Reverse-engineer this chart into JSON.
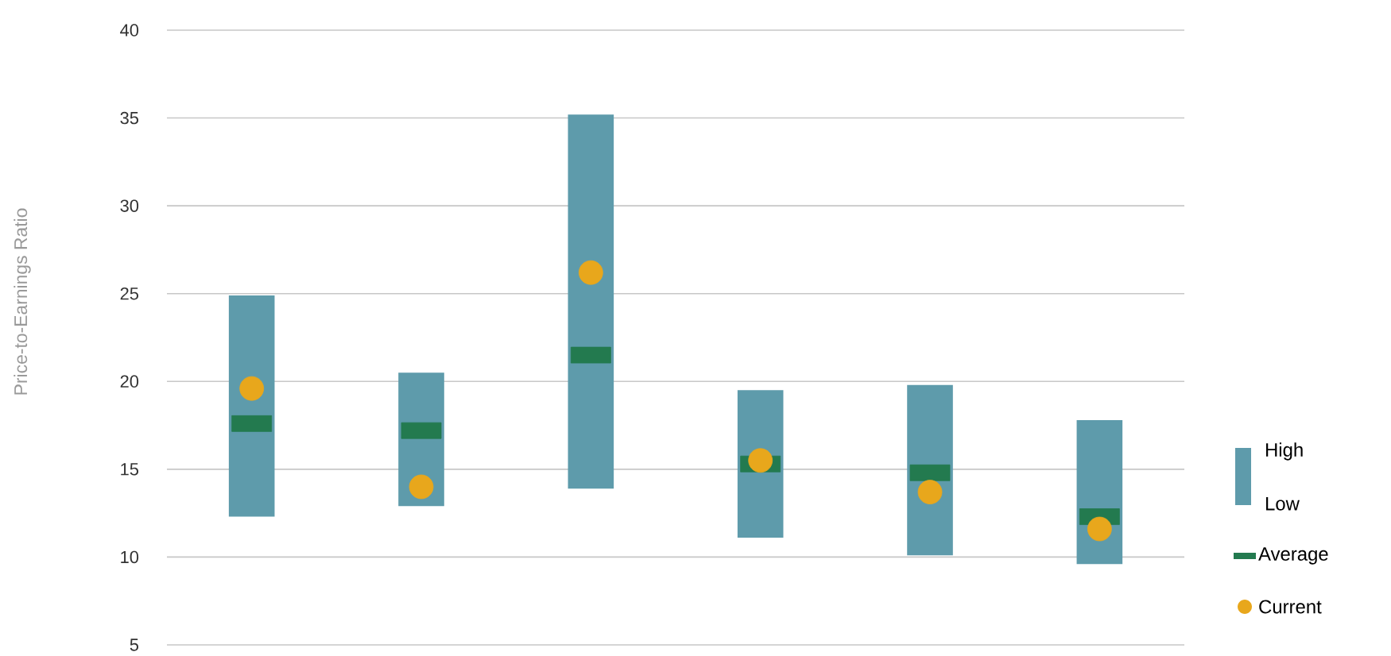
{
  "chart_data": {
    "type": "bar",
    "ylabel": "Price-to-Earnings Ratio",
    "categories": [
      null,
      null,
      null,
      null,
      null,
      null
    ],
    "series": [
      {
        "name": "High Low",
        "color": "#5e9bab",
        "values": [
          12.6,
          7.6,
          21.3,
          8.4,
          9.7,
          8.2
        ],
        "base": [
          12.3,
          12.9,
          13.9,
          11.1,
          10.1,
          9.6
        ]
      },
      {
        "name": "Average",
        "type": "scatter",
        "marker": "square",
        "color": "#237a4f",
        "values": [
          17.6,
          17.2,
          21.5,
          15.3,
          14.8,
          12.3
        ]
      },
      {
        "name": "Current",
        "type": "scatter",
        "marker": "circle",
        "color": "#e8a71c",
        "values": [
          19.6,
          14.0,
          26.2,
          15.5,
          13.7,
          11.6
        ]
      }
    ],
    "ylim": [
      5,
      40
    ],
    "yticks": [
      5,
      10,
      15,
      20,
      25,
      30,
      35,
      40
    ],
    "grid": "y",
    "legend": "right"
  }
}
